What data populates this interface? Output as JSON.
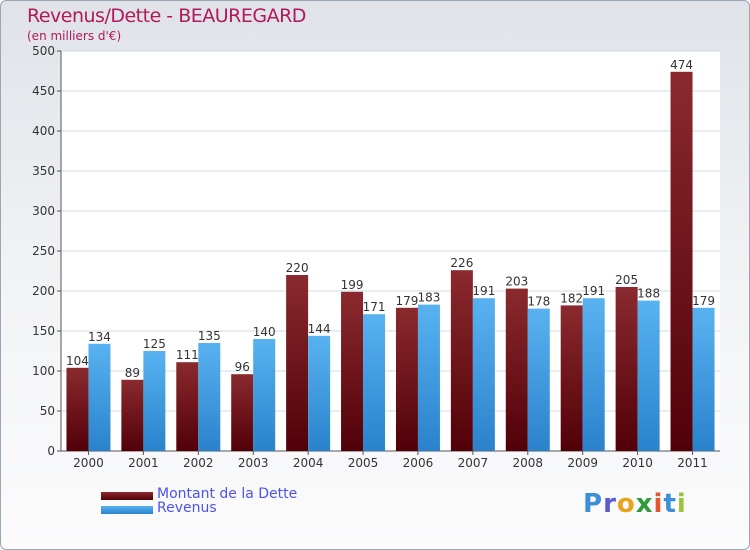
{
  "chart_data": {
    "type": "bar",
    "title": "Revenus/Dette - BEAUREGARD",
    "subtitle": "(en milliers d'€)",
    "categories": [
      "2000",
      "2001",
      "2002",
      "2003",
      "2004",
      "2005",
      "2006",
      "2007",
      "2008",
      "2009",
      "2010",
      "2011"
    ],
    "series": [
      {
        "name": "Montant de la Dette",
        "color": "#7a1518",
        "values": [
          104,
          89,
          111,
          96,
          220,
          199,
          179,
          226,
          203,
          182,
          205,
          474
        ]
      },
      {
        "name": "Revenus",
        "color": "#3f9de6",
        "values": [
          134,
          125,
          135,
          140,
          144,
          171,
          183,
          191,
          178,
          191,
          188,
          179
        ]
      }
    ],
    "ylim": [
      0,
      500
    ],
    "yticks": [
      0,
      50,
      100,
      150,
      200,
      250,
      300,
      350,
      400,
      450,
      500
    ],
    "grid": true,
    "legend_position": "bottom-left"
  },
  "logo": {
    "text": "Proxiti",
    "letters": [
      "P",
      "r",
      "o",
      "x",
      "i",
      "t",
      "i"
    ],
    "colors": [
      "#3b8fd9",
      "#5b5bd0",
      "#e8a21c",
      "#2f9a3a",
      "#e1562f",
      "#3b8fd9",
      "#9bc43a"
    ]
  }
}
